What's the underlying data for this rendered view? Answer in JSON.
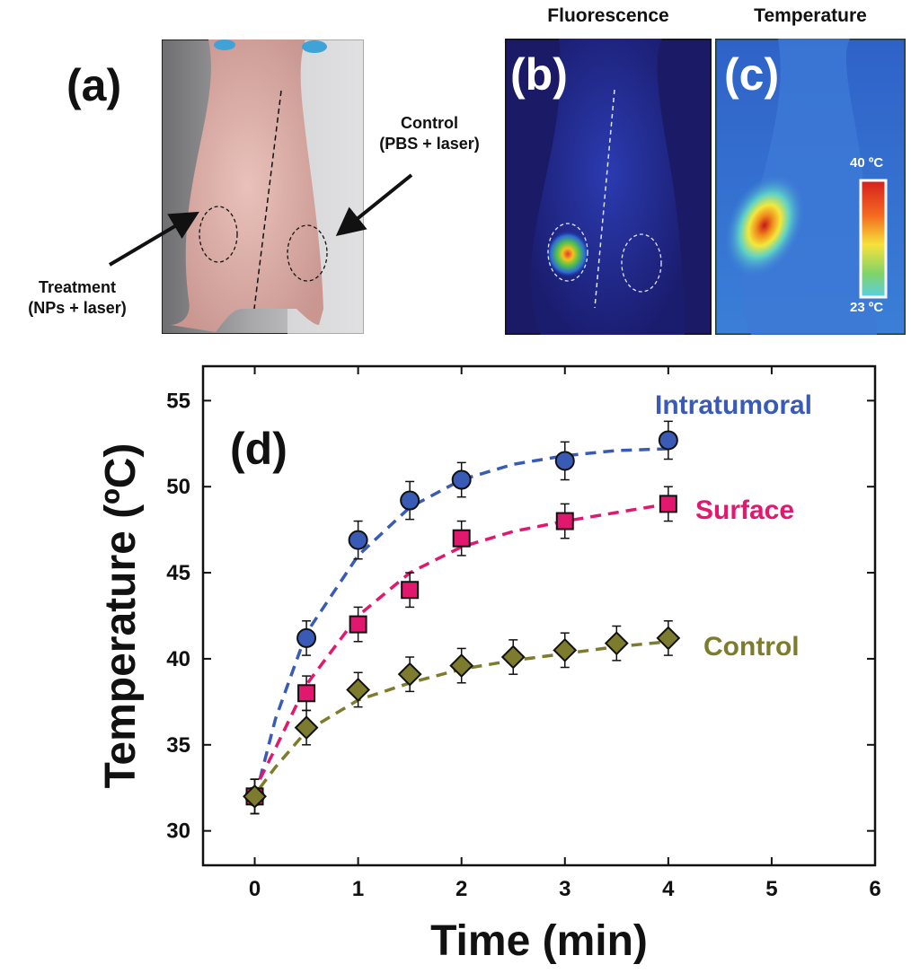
{
  "panels": {
    "a": {
      "label": "(a)",
      "control_label": "Control",
      "control_sub": "(PBS + laser)",
      "treatment_label": "Treatment",
      "treatment_sub": "(NPs + laser)"
    },
    "b": {
      "label": "(b)",
      "title": "Fluorescence"
    },
    "c": {
      "label": "(c)",
      "title": "Temperature",
      "scale_max": "40 ºC",
      "scale_min": "23 ºC"
    }
  },
  "chart_data": {
    "type": "scatter",
    "panel_label": "(d)",
    "xlabel": "Time (min)",
    "ylabel": "Temperature (ºC)",
    "xlim": [
      -0.5,
      6
    ],
    "ylim": [
      28,
      57
    ],
    "xticks": [
      0,
      1,
      2,
      3,
      4,
      5,
      6
    ],
    "yticks": [
      30,
      35,
      40,
      45,
      50,
      55
    ],
    "grid": false,
    "legend": "inline labels next to each series",
    "series": [
      {
        "name": "Intratumoral",
        "color": "#3a5bb5",
        "marker": "circle",
        "x": [
          0,
          0.5,
          1,
          1.5,
          2,
          3,
          4
        ],
        "y": [
          32,
          41.2,
          46.9,
          49.2,
          50.4,
          51.5,
          52.7
        ],
        "err": [
          1.0,
          1.0,
          1.1,
          1.1,
          1.0,
          1.1,
          1.1
        ],
        "fit": [
          [
            0.05,
            33
          ],
          [
            0.2,
            36.5
          ],
          [
            0.5,
            41.5
          ],
          [
            1,
            46
          ],
          [
            1.5,
            48.8
          ],
          [
            2,
            50.4
          ],
          [
            2.5,
            51.3
          ],
          [
            3,
            51.8
          ],
          [
            3.5,
            52.1
          ],
          [
            4,
            52.2
          ]
        ]
      },
      {
        "name": "Surface",
        "color": "#e2186f",
        "marker": "square",
        "x": [
          0,
          0.5,
          1,
          1.5,
          2,
          3,
          4
        ],
        "y": [
          32,
          38,
          42,
          44,
          47,
          48,
          49
        ],
        "err": [
          1.0,
          1.0,
          1.0,
          1.0,
          1.0,
          1.0,
          1.0
        ],
        "fit": [
          [
            0.05,
            33
          ],
          [
            0.2,
            34.8
          ],
          [
            0.5,
            38.5
          ],
          [
            1,
            42.5
          ],
          [
            1.5,
            45
          ],
          [
            2,
            46.5
          ],
          [
            2.5,
            47.4
          ],
          [
            3,
            48
          ],
          [
            3.5,
            48.5
          ],
          [
            4,
            49
          ]
        ]
      },
      {
        "name": "Control",
        "color": "#7d7c2e",
        "marker": "diamond",
        "x": [
          0,
          0.5,
          1,
          1.5,
          2,
          2.5,
          3,
          3.5,
          4
        ],
        "y": [
          32,
          36,
          38.2,
          39.1,
          39.6,
          40.1,
          40.5,
          40.9,
          41.2
        ],
        "err": [
          1.0,
          1.0,
          1.0,
          1.0,
          1.0,
          1.0,
          1.0,
          1.0,
          1.0
        ],
        "fit": [
          [
            0.05,
            32.5
          ],
          [
            0.2,
            33.7
          ],
          [
            0.5,
            35.8
          ],
          [
            1,
            37.6
          ],
          [
            1.5,
            38.6
          ],
          [
            2,
            39.4
          ],
          [
            2.5,
            39.9
          ],
          [
            3,
            40.3
          ],
          [
            3.5,
            40.7
          ],
          [
            4,
            41
          ]
        ]
      }
    ]
  }
}
